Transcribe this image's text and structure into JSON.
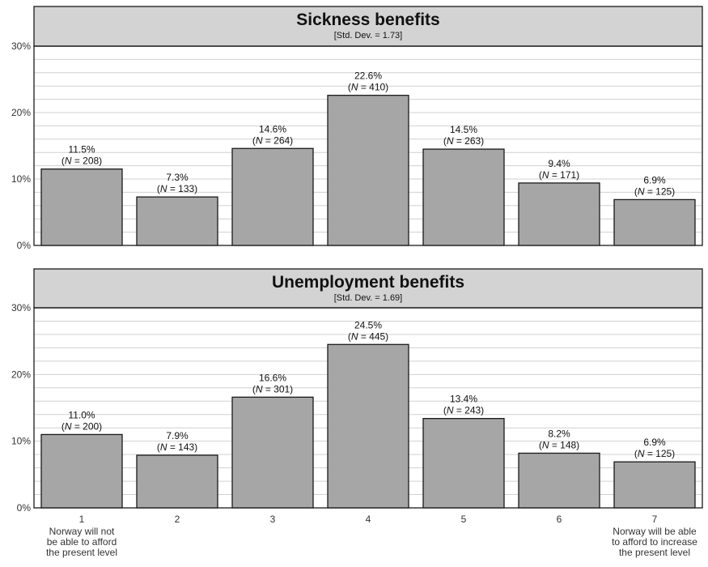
{
  "chart_data": [
    {
      "type": "bar",
      "title": "Sickness benefits",
      "subtitle": "[Std. Dev. = 1.73]",
      "categories": [
        "1",
        "2",
        "3",
        "4",
        "5",
        "6",
        "7"
      ],
      "values": [
        11.5,
        7.3,
        14.6,
        22.6,
        14.5,
        9.4,
        6.9
      ],
      "n_prefix": "N",
      "n_values": [
        208,
        133,
        264,
        410,
        263,
        171,
        125
      ],
      "ylim": [
        0,
        30
      ],
      "yticks": [
        "0%",
        "10%",
        "20%",
        "30%"
      ],
      "grid": true
    },
    {
      "type": "bar",
      "title": "Unemployment benefits",
      "subtitle": "[Std. Dev. = 1.69]",
      "categories": [
        "1",
        "2",
        "3",
        "4",
        "5",
        "6",
        "7"
      ],
      "values": [
        11.0,
        7.9,
        16.6,
        24.5,
        13.4,
        8.2,
        6.9
      ],
      "n_prefix": "N",
      "n_values": [
        200,
        143,
        301,
        445,
        243,
        148,
        125
      ],
      "ylim": [
        0,
        30
      ],
      "yticks": [
        "0%",
        "10%",
        "20%",
        "30%"
      ],
      "grid": true
    }
  ],
  "x_category_notes": {
    "first": [
      "Norway will not",
      "be able to afford",
      "the present level"
    ],
    "last": [
      "Norway will be able",
      "to afford to increase",
      "the present level"
    ]
  },
  "colors": {
    "bar_fill": "#a6a6a6",
    "header_fill": "#d3d3d3",
    "grid": "#d0d0d0",
    "frame": "#1a1a1a"
  }
}
